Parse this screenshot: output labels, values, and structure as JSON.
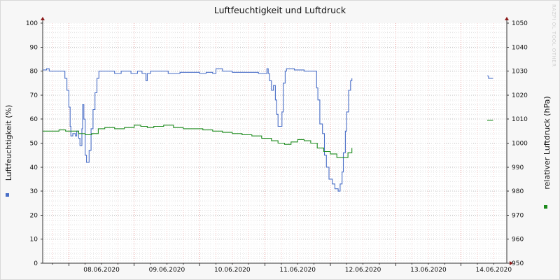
{
  "chart_data": {
    "type": "line",
    "title": "Luftfeuchtigkeit und Luftdruck",
    "y_left": {
      "label": "Luftfeuchtigkeit (%)",
      "range": [
        0,
        100
      ],
      "ticks": [
        0,
        10,
        20,
        30,
        40,
        50,
        60,
        70,
        80,
        90,
        100
      ]
    },
    "y_right": {
      "label": "relativer Luftdruck (hPa)",
      "range": [
        950,
        1050
      ],
      "ticks": [
        950,
        960,
        970,
        980,
        990,
        1000,
        1010,
        1020,
        1030,
        1040,
        1050
      ]
    },
    "x_range": [
      7.6,
      14.7
    ],
    "x_ticks": [
      {
        "x": 8,
        "label": "08.06.2020"
      },
      {
        "x": 9,
        "label": "09.06.2020"
      },
      {
        "x": 10,
        "label": "10.06.2020"
      },
      {
        "x": 11,
        "label": "11.06.2020"
      },
      {
        "x": 12,
        "label": "12.06.2020"
      },
      {
        "x": 13,
        "label": "13.06.2020"
      },
      {
        "x": 14,
        "label": "14.06.2020"
      }
    ],
    "grid": true,
    "series": [
      {
        "axis": "left",
        "color": "#4a6fc7",
        "segments": [
          [
            [
              7.6,
              80.5
            ],
            [
              7.66,
              81
            ],
            [
              7.7,
              80
            ],
            [
              7.92,
              80
            ],
            [
              7.94,
              77
            ],
            [
              7.97,
              72
            ],
            [
              8.0,
              65
            ],
            [
              8.02,
              57
            ],
            [
              8.03,
              53
            ],
            [
              8.06,
              54
            ],
            [
              8.1,
              53
            ],
            [
              8.12,
              55
            ],
            [
              8.15,
              52
            ],
            [
              8.17,
              49
            ],
            [
              8.2,
              56
            ],
            [
              8.21,
              66
            ],
            [
              8.23,
              60
            ],
            [
              8.25,
              45
            ],
            [
              8.27,
              42
            ],
            [
              8.29,
              42
            ],
            [
              8.31,
              47
            ],
            [
              8.34,
              56
            ],
            [
              8.37,
              64
            ],
            [
              8.4,
              71
            ],
            [
              8.43,
              77
            ],
            [
              8.46,
              80
            ],
            [
              8.55,
              80
            ],
            [
              8.7,
              79
            ],
            [
              8.8,
              80
            ],
            [
              8.95,
              79
            ],
            [
              9.05,
              80
            ],
            [
              9.12,
              79
            ],
            [
              9.18,
              76
            ],
            [
              9.2,
              79
            ],
            [
              9.25,
              80
            ],
            [
              9.5,
              80
            ],
            [
              9.52,
              79
            ],
            [
              9.6,
              79
            ],
            [
              9.7,
              79.5
            ],
            [
              10.0,
              79
            ],
            [
              10.1,
              79.5
            ],
            [
              10.2,
              79
            ],
            [
              10.25,
              81
            ],
            [
              10.35,
              80
            ],
            [
              10.5,
              79.5
            ],
            [
              10.8,
              79.5
            ],
            [
              10.9,
              79
            ],
            [
              11.0,
              79
            ],
            [
              11.03,
              81
            ],
            [
              11.05,
              79
            ],
            [
              11.07,
              76
            ],
            [
              11.1,
              72
            ],
            [
              11.13,
              74
            ],
            [
              11.16,
              68
            ],
            [
              11.18,
              62
            ],
            [
              11.2,
              57
            ],
            [
              11.22,
              57
            ],
            [
              11.26,
              63
            ],
            [
              11.28,
              75
            ],
            [
              11.31,
              80
            ],
            [
              11.33,
              81
            ],
            [
              11.45,
              80.5
            ],
            [
              11.6,
              80
            ],
            [
              11.76,
              80
            ],
            [
              11.79,
              73
            ],
            [
              11.81,
              68
            ],
            [
              11.84,
              58
            ],
            [
              11.88,
              54
            ],
            [
              11.91,
              45
            ],
            [
              11.94,
              40
            ],
            [
              11.98,
              35
            ],
            [
              12.03,
              33
            ],
            [
              12.07,
              31
            ],
            [
              12.12,
              30
            ],
            [
              12.15,
              33
            ],
            [
              12.18,
              38
            ],
            [
              12.2,
              46
            ],
            [
              12.23,
              55
            ],
            [
              12.25,
              63
            ],
            [
              12.28,
              72
            ],
            [
              12.31,
              76
            ],
            [
              12.33,
              77
            ]
          ],
          [
            [
              14.4,
              78
            ],
            [
              14.42,
              77
            ],
            [
              14.49,
              77
            ]
          ]
        ]
      },
      {
        "axis": "right",
        "color": "#1c8a1c",
        "segments": [
          [
            [
              7.6,
              1005
            ],
            [
              7.75,
              1005
            ],
            [
              7.85,
              1005.5
            ],
            [
              7.95,
              1005
            ],
            [
              8.05,
              1005
            ],
            [
              8.15,
              1004
            ],
            [
              8.25,
              1003.5
            ],
            [
              8.35,
              1004
            ],
            [
              8.45,
              1006
            ],
            [
              8.55,
              1006.5
            ],
            [
              8.7,
              1006
            ],
            [
              8.85,
              1006.5
            ],
            [
              9.0,
              1007.5
            ],
            [
              9.1,
              1007
            ],
            [
              9.2,
              1006.5
            ],
            [
              9.3,
              1007
            ],
            [
              9.45,
              1007.5
            ],
            [
              9.6,
              1006.5
            ],
            [
              9.75,
              1006
            ],
            [
              9.9,
              1006
            ],
            [
              10.05,
              1005.5
            ],
            [
              10.2,
              1005
            ],
            [
              10.35,
              1004.5
            ],
            [
              10.5,
              1004
            ],
            [
              10.65,
              1003.5
            ],
            [
              10.8,
              1003
            ],
            [
              10.95,
              1002
            ],
            [
              11.1,
              1001
            ],
            [
              11.2,
              1000
            ],
            [
              11.3,
              999.5
            ],
            [
              11.4,
              1000.5
            ],
            [
              11.5,
              1001.5
            ],
            [
              11.6,
              1001
            ],
            [
              11.7,
              1000
            ],
            [
              11.8,
              998
            ],
            [
              11.9,
              996.5
            ],
            [
              12.0,
              995.5
            ],
            [
              12.1,
              994
            ],
            [
              12.2,
              994
            ],
            [
              12.27,
              996
            ],
            [
              12.33,
              998
            ]
          ],
          [
            [
              14.4,
              1009.5
            ],
            [
              14.49,
              1009.5
            ]
          ]
        ]
      }
    ]
  },
  "watermark": "RAZPI OL TOOL OTHER"
}
